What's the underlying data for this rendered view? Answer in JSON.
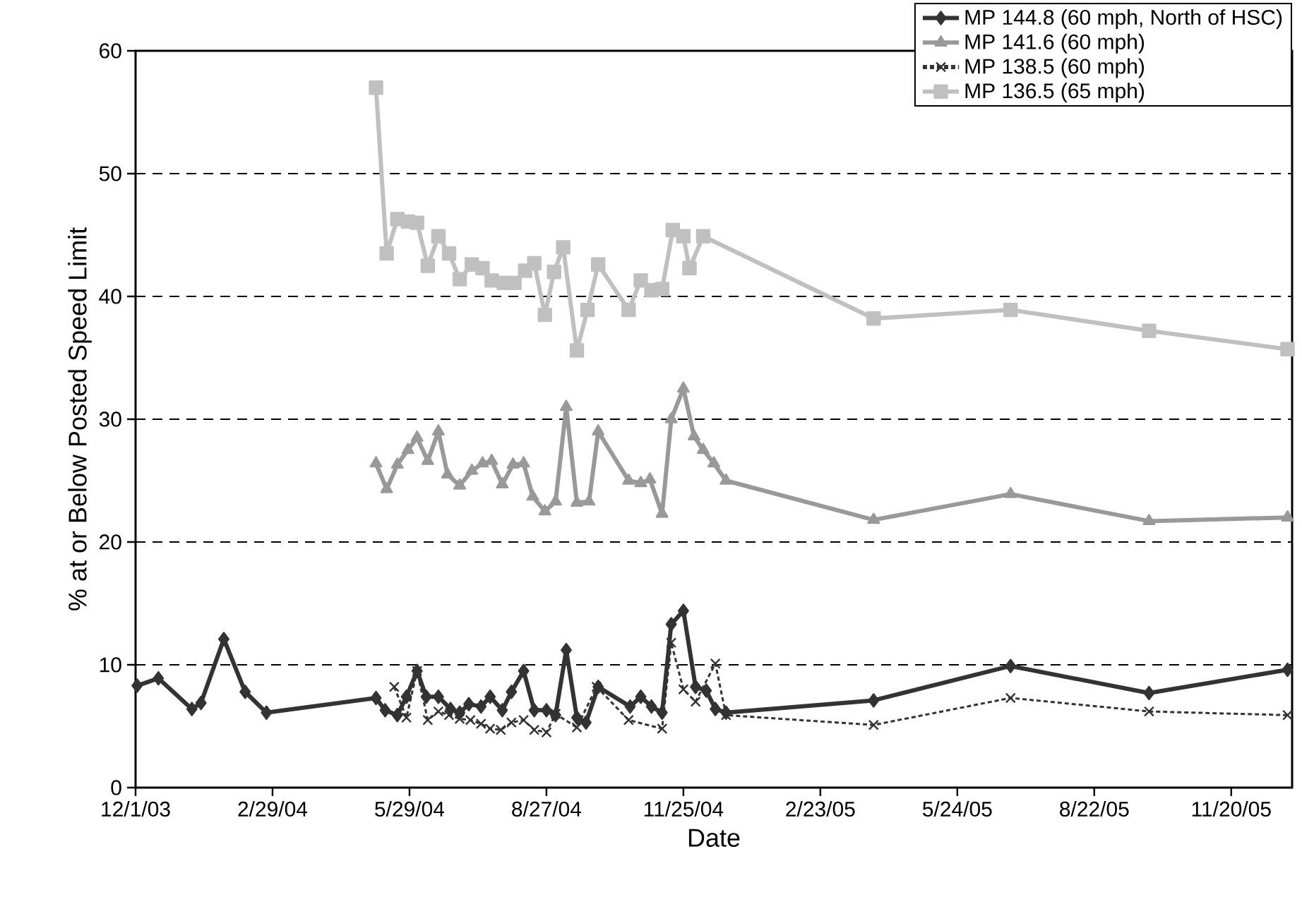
{
  "chart_data": {
    "type": "line",
    "xlabel": "Date",
    "ylabel": "% at or Below Posted Speed Limit",
    "xlim": [
      "2003-12-01",
      "2005-12-30"
    ],
    "xticks": [
      {
        "value": "2003-12-01",
        "label": "12/1/03"
      },
      {
        "value": "2004-02-29",
        "label": "2/29/04"
      },
      {
        "value": "2004-05-29",
        "label": "5/29/04"
      },
      {
        "value": "2004-08-27",
        "label": "8/27/04"
      },
      {
        "value": "2004-11-25",
        "label": "11/25/04"
      },
      {
        "value": "2005-02-23",
        "label": "2/23/05"
      },
      {
        "value": "2005-05-24",
        "label": "5/24/05"
      },
      {
        "value": "2005-08-22",
        "label": "8/22/05"
      },
      {
        "value": "2005-11-20",
        "label": "11/20/05"
      }
    ],
    "ylim": [
      0,
      60
    ],
    "yticks": [
      0,
      10,
      20,
      30,
      40,
      50,
      60
    ],
    "grid": "y",
    "legend": "top right",
    "series": [
      {
        "name": "MP 144.8 (60 mph, North of HSC)",
        "color": "#333333",
        "marker": "diamond",
        "line_style": "solid",
        "x": [
          "2003-12-02",
          "2003-12-16",
          "2004-01-07",
          "2004-01-13",
          "2004-01-28",
          "2004-02-11",
          "2004-02-25",
          "2004-05-07",
          "2004-05-13",
          "2004-05-21",
          "2004-05-27",
          "2004-06-03",
          "2004-06-09",
          "2004-06-17",
          "2004-06-25",
          "2004-07-01",
          "2004-07-07",
          "2004-07-15",
          "2004-07-21",
          "2004-07-29",
          "2004-08-04",
          "2004-08-12",
          "2004-08-19",
          "2004-08-27",
          "2004-09-02",
          "2004-09-09",
          "2004-09-16",
          "2004-09-22",
          "2004-09-30",
          "2004-10-21",
          "2004-10-28",
          "2004-11-04",
          "2004-11-11",
          "2004-11-17",
          "2004-11-25",
          "2004-12-03",
          "2004-12-10",
          "2004-12-16",
          "2004-12-23",
          "2005-03-30",
          "2005-06-28",
          "2005-09-27",
          "2005-12-27"
        ],
        "values": [
          8.3,
          8.9,
          6.4,
          6.9,
          12.1,
          7.8,
          6.1,
          7.3,
          6.3,
          5.9,
          7.4,
          9.5,
          7.4,
          7.4,
          6.4,
          6.1,
          6.8,
          6.6,
          7.4,
          6.3,
          7.8,
          9.5,
          6.3,
          6.3,
          5.9,
          11.2,
          5.7,
          5.3,
          8.2,
          6.6,
          7.4,
          6.6,
          6.1,
          13.3,
          14.4,
          8.2,
          7.9,
          6.4,
          6.1,
          7.1,
          9.9,
          7.7,
          9.6
        ]
      },
      {
        "name": "MP 141.6 (60 mph)",
        "color": "#999999",
        "marker": "triangle",
        "line_style": "solid",
        "x": [
          "2004-05-07",
          "2004-05-14",
          "2004-05-21",
          "2004-05-28",
          "2004-06-03",
          "2004-06-10",
          "2004-06-17",
          "2004-06-23",
          "2004-07-01",
          "2004-07-09",
          "2004-07-16",
          "2004-07-22",
          "2004-07-29",
          "2004-08-05",
          "2004-08-12",
          "2004-08-18",
          "2004-08-26",
          "2004-09-02",
          "2004-09-09",
          "2004-09-16",
          "2004-09-24",
          "2004-09-30",
          "2004-10-20",
          "2004-10-28",
          "2004-11-03",
          "2004-11-11",
          "2004-11-17",
          "2004-11-25",
          "2004-12-02",
          "2004-12-08",
          "2004-12-15",
          "2004-12-23",
          "2005-03-30",
          "2005-06-28",
          "2005-09-27",
          "2005-12-27"
        ],
        "values": [
          26.4,
          24.3,
          26.3,
          27.5,
          28.5,
          26.6,
          29.0,
          25.5,
          24.6,
          25.8,
          26.4,
          26.6,
          24.7,
          26.3,
          26.4,
          23.7,
          22.5,
          23.3,
          31.0,
          23.2,
          23.3,
          29.0,
          25.0,
          24.8,
          25.1,
          22.3,
          30.0,
          32.5,
          28.6,
          27.5,
          26.4,
          25.0,
          21.8,
          23.9,
          21.7,
          22.0
        ]
      },
      {
        "name": "MP 138.5 (60 mph)",
        "color": "#333333",
        "marker": "cross",
        "line_style": "dashed",
        "x": [
          "2004-05-19",
          "2004-05-27",
          "2004-06-03",
          "2004-06-10",
          "2004-06-17",
          "2004-06-24",
          "2004-07-01",
          "2004-07-08",
          "2004-07-15",
          "2004-07-21",
          "2004-07-28",
          "2004-08-04",
          "2004-08-12",
          "2004-08-19",
          "2004-08-27",
          "2004-09-02",
          "2004-09-09",
          "2004-09-16",
          "2004-09-29",
          "2004-10-20",
          "2004-10-28",
          "2004-11-11",
          "2004-11-17",
          "2004-11-25",
          "2004-12-03",
          "2004-12-16",
          "2004-12-23",
          "2005-03-30",
          "2005-06-28",
          "2005-09-27",
          "2005-12-27"
        ],
        "values": [
          8.2,
          5.7,
          9.5,
          5.5,
          6.2,
          5.9,
          5.6,
          5.5,
          5.2,
          4.8,
          4.7,
          5.3,
          5.5,
          4.7,
          4.5,
          6.0,
          null,
          4.9,
          8.2,
          5.5,
          null,
          4.8,
          11.8,
          8.0,
          7.0,
          10.1,
          5.9,
          5.1,
          7.3,
          6.2,
          5.9
        ]
      },
      {
        "name": "MP 136.5 (65 mph)",
        "color": "#c0c0c0",
        "marker": "square",
        "line_style": "solid",
        "x": [
          "2004-05-07",
          "2004-05-14",
          "2004-05-21",
          "2004-05-28",
          "2004-06-03",
          "2004-06-10",
          "2004-06-17",
          "2004-06-24",
          "2004-07-01",
          "2004-07-09",
          "2004-07-16",
          "2004-07-22",
          "2004-07-30",
          "2004-08-06",
          "2004-08-13",
          "2004-08-19",
          "2004-08-26",
          "2004-09-01",
          "2004-09-07",
          "2004-09-16",
          "2004-09-23",
          "2004-09-30",
          "2004-10-20",
          "2004-10-28",
          "2004-11-04",
          "2004-11-11",
          "2004-11-18",
          "2004-11-25",
          "2004-11-29",
          "2004-12-08",
          "2005-03-30",
          "2005-06-28",
          "2005-09-27",
          "2005-12-27"
        ],
        "values": [
          57.0,
          43.5,
          46.3,
          46.1,
          46.0,
          42.5,
          44.9,
          43.5,
          41.4,
          42.6,
          42.3,
          41.3,
          41.1,
          41.1,
          42.1,
          42.7,
          38.5,
          42.0,
          44.0,
          35.6,
          38.9,
          42.6,
          38.9,
          41.3,
          40.5,
          40.6,
          45.4,
          44.9,
          42.3,
          44.9,
          38.2,
          38.9,
          37.2,
          35.7
        ]
      }
    ]
  }
}
